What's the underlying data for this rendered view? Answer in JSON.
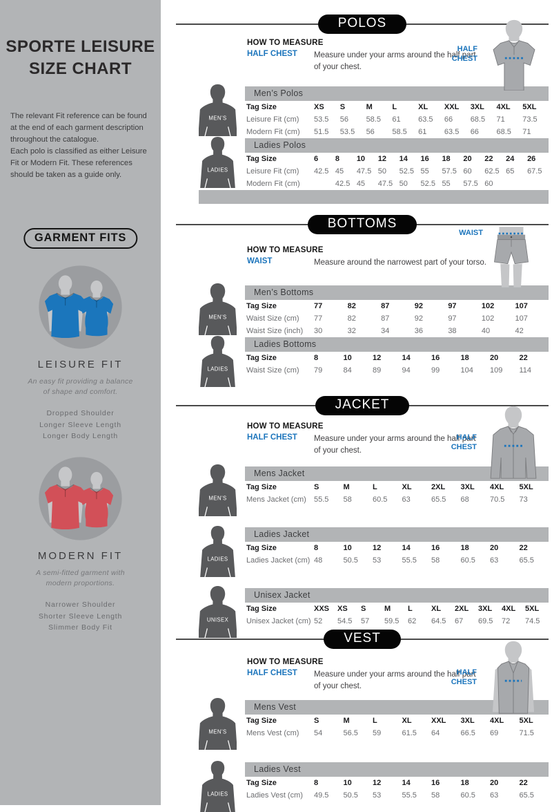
{
  "colors": {
    "sidebar_gray": "#b2b4b6",
    "table_band_gray": "#b2b4b6",
    "silhouette_dark_gray": "#58595b",
    "accent_blue": "#1c75bc",
    "pill_black": "#050505",
    "data_text_gray": "#6d6e71",
    "leisure_fit_blue": "#1b76bc",
    "modern_fit_red": "#d25058"
  },
  "sidebar": {
    "title": "SPORTE LEISURE SIZE CHART",
    "intro": [
      "The relevant Fit reference can be found at the end of each garment description throughout the catalogue.",
      "Each polo is classified as either Leisure Fit or Modern Fit. These references should be taken as a guide only."
    ],
    "garment_fits_label": "GARMENT FITS",
    "fits": [
      {
        "name": "LEISURE FIT",
        "description": "An easy fit providing a balance of shape and comfort.",
        "features": [
          "Dropped Shoulder",
          "Longer Sleeve Length",
          "Longer Body Length"
        ],
        "shirt_color": "#1b76bc"
      },
      {
        "name": "MODERN FIT",
        "description": "A semi-fitted garment with modern proportions.",
        "features": [
          "Narrower Shoulder",
          "Shorter Sleeve Length",
          "Slimmer Body Fit"
        ],
        "shirt_color": "#d25058"
      }
    ]
  },
  "sections": [
    {
      "id": "polos",
      "title": "POLOS",
      "how_to_measure": {
        "heading": "HOW TO MEASURE",
        "label": "HALF CHEST",
        "description": "Measure under your arms around the half part of your chest."
      },
      "illustration": {
        "type": "polo",
        "label": "HALF CHEST"
      },
      "trailing_band": true,
      "tables": [
        {
          "title": "Men’s Polos",
          "silhouette": "mens",
          "silhouette_label": "MEN’S",
          "rows": [
            {
              "label": "Tag Size",
              "header": true,
              "values": [
                "XS",
                "S",
                "M",
                "L",
                "XL",
                "XXL",
                "3XL",
                "4XL",
                "5XL"
              ]
            },
            {
              "label": "Leisure Fit (cm)",
              "values": [
                "53.5",
                "56",
                "58.5",
                "61",
                "63.5",
                "66",
                "68.5",
                "71",
                "73.5"
              ]
            },
            {
              "label": "Modern Fit (cm)",
              "values": [
                "51.5",
                "53.5",
                "56",
                "58.5",
                "61",
                "63.5",
                "66",
                "68.5",
                "71"
              ]
            }
          ]
        },
        {
          "title": "Ladies Polos",
          "silhouette": "ladies",
          "silhouette_label": "LADIES",
          "rows": [
            {
              "label": "Tag Size",
              "header": true,
              "values": [
                "6",
                "8",
                "10",
                "12",
                "14",
                "16",
                "18",
                "20",
                "22",
                "24",
                "26"
              ]
            },
            {
              "label": "Leisure Fit (cm)",
              "values": [
                "42.5",
                "45",
                "47.5",
                "50",
                "52.5",
                "55",
                "57.5",
                "60",
                "62.5",
                "65",
                "67.5"
              ]
            },
            {
              "label": "Modern Fit (cm)",
              "values": [
                "",
                "42.5",
                "45",
                "47.5",
                "50",
                "52.5",
                "55",
                "57.5",
                "60",
                "",
                ""
              ]
            }
          ]
        }
      ]
    },
    {
      "id": "bottoms",
      "title": "BOTTOMS",
      "how_to_measure": {
        "heading": "HOW TO MEASURE",
        "label": "WAIST",
        "description": "Measure around the narrowest part of your torso."
      },
      "illustration": {
        "type": "shorts",
        "label": "WAIST"
      },
      "trailing_band": false,
      "tables": [
        {
          "title": "Men’s Bottoms",
          "silhouette": "mens",
          "silhouette_label": "MEN’S",
          "rows": [
            {
              "label": "Tag Size",
              "header": true,
              "values": [
                "77",
                "82",
                "87",
                "92",
                "97",
                "102",
                "107"
              ]
            },
            {
              "label": "Waist Size (cm)",
              "values": [
                "77",
                "82",
                "87",
                "92",
                "97",
                "102",
                "107"
              ]
            },
            {
              "label": "Waist Size (inch)",
              "values": [
                "30",
                "32",
                "34",
                "36",
                "38",
                "40",
                "42"
              ]
            }
          ]
        },
        {
          "title": "Ladies Bottoms",
          "silhouette": "ladies",
          "silhouette_label": "LADIES",
          "rows": [
            {
              "label": "Tag Size",
              "header": true,
              "values": [
                "8",
                "10",
                "12",
                "14",
                "16",
                "18",
                "20",
                "22"
              ]
            },
            {
              "label": "Waist Size (cm)",
              "values": [
                "79",
                "84",
                "89",
                "94",
                "99",
                "104",
                "109",
                "114"
              ]
            }
          ]
        }
      ]
    },
    {
      "id": "jacket",
      "title": "JACKET",
      "how_to_measure": {
        "heading": "HOW TO MEASURE",
        "label": "HALF CHEST",
        "description": "Measure under your arms around the half part of your chest."
      },
      "illustration": {
        "type": "jacket",
        "label": "HALF CHEST"
      },
      "trailing_band": false,
      "tables": [
        {
          "title": "Mens Jacket",
          "silhouette": "mens",
          "silhouette_label": "MEN’S",
          "rows": [
            {
              "label": "Tag Size",
              "header": true,
              "values": [
                "S",
                "M",
                "L",
                "XL",
                "2XL",
                "3XL",
                "4XL",
                "5XL"
              ]
            },
            {
              "label": "Mens Jacket (cm)",
              "values": [
                "55.5",
                "58",
                "60.5",
                "63",
                "65.5",
                "68",
                "70.5",
                "73"
              ]
            }
          ]
        },
        {
          "title": "Ladies Jacket",
          "silhouette": "ladies",
          "silhouette_label": "LADIES",
          "rows": [
            {
              "label": "Tag Size",
              "header": true,
              "values": [
                "8",
                "10",
                "12",
                "14",
                "16",
                "18",
                "20",
                "22"
              ]
            },
            {
              "label": "Ladies Jacket (cm)",
              "values": [
                "48",
                "50.5",
                "53",
                "55.5",
                "58",
                "60.5",
                "63",
                "65.5"
              ]
            }
          ]
        },
        {
          "title": "Unisex Jacket",
          "silhouette": "unisex",
          "silhouette_label": "UNISEX",
          "rows": [
            {
              "label": "Tag Size",
              "header": true,
              "values": [
                "XXS",
                "XS",
                "S",
                "M",
                "L",
                "XL",
                "2XL",
                "3XL",
                "4XL",
                "5XL"
              ]
            },
            {
              "label": "Unisex Jacket (cm)",
              "values": [
                "52",
                "54.5",
                "57",
                "59.5",
                "62",
                "64.5",
                "67",
                "69.5",
                "72",
                "74.5"
              ]
            }
          ]
        }
      ]
    },
    {
      "id": "vest",
      "title": "VEST",
      "how_to_measure": {
        "heading": "HOW TO MEASURE",
        "label": "HALF CHEST",
        "description": "Measure under your arms around the half part of your chest."
      },
      "illustration": {
        "type": "vest",
        "label": "HALF CHEST"
      },
      "trailing_band": false,
      "tables": [
        {
          "title": "Mens Vest",
          "silhouette": "mens",
          "silhouette_label": "MEN’S",
          "rows": [
            {
              "label": "Tag Size",
              "header": true,
              "values": [
                "S",
                "M",
                "L",
                "XL",
                "XXL",
                "3XL",
                "4XL",
                "5XL"
              ]
            },
            {
              "label": "Mens Vest (cm)",
              "values": [
                "54",
                "56.5",
                "59",
                "61.5",
                "64",
                "66.5",
                "69",
                "71.5"
              ]
            }
          ]
        },
        {
          "title": "Ladies Vest",
          "silhouette": "ladies",
          "silhouette_label": "LADIES",
          "rows": [
            {
              "label": "Tag Size",
              "header": true,
              "values": [
                "8",
                "10",
                "12",
                "14",
                "16",
                "18",
                "20",
                "22"
              ]
            },
            {
              "label": "Ladies Vest (cm)",
              "values": [
                "49.5",
                "50.5",
                "53",
                "55.5",
                "58",
                "60.5",
                "63",
                "65.5"
              ]
            }
          ]
        }
      ]
    }
  ]
}
